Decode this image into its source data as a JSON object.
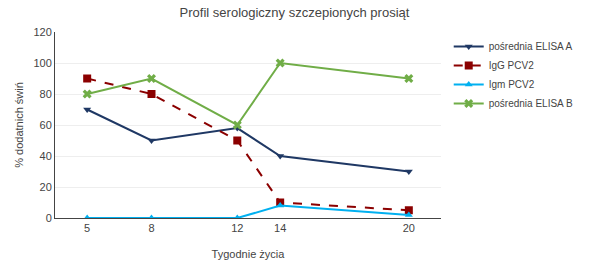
{
  "chart_data": {
    "type": "line",
    "title": "Profil serologiczny szczepionych prosiąt",
    "x_label": "Tygodnie życia",
    "y_label": "% dodatnich świń",
    "x": [
      5,
      8,
      12,
      14,
      20
    ],
    "series": [
      {
        "name": "pośrednia ELISA A",
        "color": "#1F3864",
        "marker": "triangle-down",
        "line_style": "solid",
        "values": [
          70,
          50,
          58,
          40,
          30
        ]
      },
      {
        "name": "IgG PCV2",
        "color": "#8B0000",
        "marker": "square",
        "line_style": "dashed",
        "values": [
          90,
          80,
          50,
          10,
          5
        ]
      },
      {
        "name": "Igm PCV2",
        "color": "#00B0F0",
        "marker": "triangle-up",
        "line_style": "solid",
        "values": [
          0,
          0,
          0,
          8,
          2
        ]
      },
      {
        "name": "pośrednia ELISA B",
        "color": "#70AD47",
        "marker": "x",
        "line_style": "solid",
        "values": [
          80,
          90,
          60,
          100,
          90
        ]
      }
    ],
    "xlim": [
      3.5,
      21.5
    ],
    "xticks": [
      5,
      8,
      12,
      14,
      20
    ],
    "ylim": [
      0,
      120
    ],
    "yticks": [
      0,
      20,
      40,
      60,
      80,
      100,
      120
    ],
    "grid": true,
    "legend": "upper right"
  }
}
